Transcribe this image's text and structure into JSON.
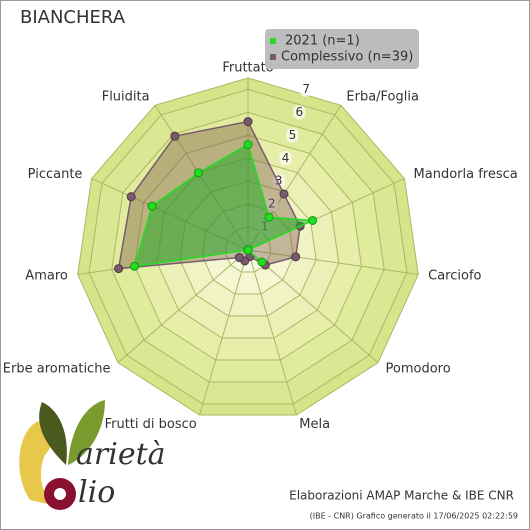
{
  "chart_data": {
    "type": "radar",
    "title": "BIANCHERA",
    "categories": [
      "Fruttato",
      "Erba/Foglia",
      "Mandorla fresca",
      "Carciofo",
      "Pomodoro",
      "Mela",
      "Frutti di bosco",
      "Erbe aromatiche",
      "Amaro",
      "Piccante",
      "Fluidita"
    ],
    "series": [
      {
        "name": "2021 (n=1)",
        "color": "#22dd22",
        "values": [
          4.6,
          1.7,
          3.1,
          0,
          0.8,
          0,
          0,
          0,
          5.0,
          4.6,
          4.0
        ]
      },
      {
        "name": "Complessivo (n=39)",
        "color": "#7a5a6e",
        "values": [
          5.6,
          2.9,
          2.5,
          2.1,
          1.0,
          0.3,
          0.5,
          0.5,
          5.7,
          5.6,
          5.9
        ]
      }
    ],
    "ylim": [
      0,
      7.5
    ],
    "yticks": [
      1,
      2,
      3,
      4,
      5,
      6,
      7
    ],
    "grid": true,
    "legend": "top-right"
  },
  "footer": {
    "credit": "Elaborazioni AMAP Marche & IBE CNR",
    "generated": "(IBE - CNR) Grafico generato il 17/06/2025 02:22:59"
  },
  "logo": {
    "word1": "arietà",
    "word2": "lio"
  }
}
